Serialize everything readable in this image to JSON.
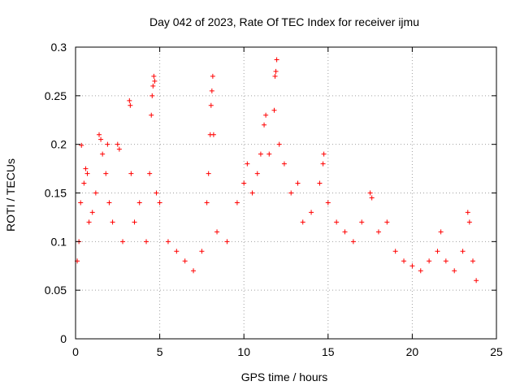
{
  "chart_data": {
    "type": "scatter",
    "title": "Day 042 of 2023, Rate Of TEC Index for receiver ijmu",
    "xlabel": "GPS time / hours",
    "ylabel": "ROTI / TECUs",
    "xlim": [
      0,
      25
    ],
    "ylim": [
      0,
      0.3
    ],
    "x_ticks": [
      "0",
      "5",
      "10",
      "15",
      "20",
      "25"
    ],
    "y_ticks": [
      "0",
      "0.05",
      "0.1",
      "0.15",
      "0.2",
      "0.25",
      "0.3"
    ],
    "grid": true,
    "marker": "plus",
    "series_color": "#ff0000",
    "points": [
      [
        0.1,
        0.08
      ],
      [
        0.2,
        0.1
      ],
      [
        0.3,
        0.14
      ],
      [
        0.35,
        0.199
      ],
      [
        0.5,
        0.16
      ],
      [
        0.6,
        0.175
      ],
      [
        0.7,
        0.17
      ],
      [
        0.8,
        0.12
      ],
      [
        1.0,
        0.13
      ],
      [
        1.2,
        0.15
      ],
      [
        1.4,
        0.21
      ],
      [
        1.5,
        0.205
      ],
      [
        1.6,
        0.19
      ],
      [
        1.8,
        0.17
      ],
      [
        1.9,
        0.2
      ],
      [
        2.0,
        0.14
      ],
      [
        2.2,
        0.12
      ],
      [
        2.5,
        0.2
      ],
      [
        2.6,
        0.195
      ],
      [
        2.8,
        0.1
      ],
      [
        3.2,
        0.245
      ],
      [
        3.25,
        0.24
      ],
      [
        3.3,
        0.17
      ],
      [
        3.5,
        0.12
      ],
      [
        3.8,
        0.14
      ],
      [
        4.2,
        0.1
      ],
      [
        4.4,
        0.17
      ],
      [
        4.5,
        0.23
      ],
      [
        4.55,
        0.25
      ],
      [
        4.6,
        0.26
      ],
      [
        4.65,
        0.27
      ],
      [
        4.7,
        0.265
      ],
      [
        4.8,
        0.15
      ],
      [
        5.0,
        0.14
      ],
      [
        5.5,
        0.1
      ],
      [
        6.0,
        0.09
      ],
      [
        6.5,
        0.08
      ],
      [
        7.0,
        0.07
      ],
      [
        7.5,
        0.09
      ],
      [
        7.8,
        0.14
      ],
      [
        7.9,
        0.17
      ],
      [
        8.0,
        0.21
      ],
      [
        8.05,
        0.24
      ],
      [
        8.1,
        0.255
      ],
      [
        8.15,
        0.27
      ],
      [
        8.2,
        0.21
      ],
      [
        8.4,
        0.11
      ],
      [
        9.0,
        0.1
      ],
      [
        9.6,
        0.14
      ],
      [
        10.0,
        0.16
      ],
      [
        10.2,
        0.18
      ],
      [
        10.5,
        0.15
      ],
      [
        10.8,
        0.17
      ],
      [
        11.0,
        0.19
      ],
      [
        11.2,
        0.22
      ],
      [
        11.3,
        0.23
      ],
      [
        11.5,
        0.19
      ],
      [
        11.8,
        0.235
      ],
      [
        11.85,
        0.27
      ],
      [
        11.9,
        0.275
      ],
      [
        11.95,
        0.287
      ],
      [
        12.1,
        0.2
      ],
      [
        12.4,
        0.18
      ],
      [
        12.8,
        0.15
      ],
      [
        13.2,
        0.16
      ],
      [
        13.5,
        0.12
      ],
      [
        14.0,
        0.13
      ],
      [
        14.5,
        0.16
      ],
      [
        14.7,
        0.18
      ],
      [
        14.75,
        0.19
      ],
      [
        15.0,
        0.14
      ],
      [
        15.5,
        0.12
      ],
      [
        16.0,
        0.11
      ],
      [
        16.5,
        0.1
      ],
      [
        17.0,
        0.12
      ],
      [
        17.5,
        0.15
      ],
      [
        17.6,
        0.145
      ],
      [
        18.0,
        0.11
      ],
      [
        18.5,
        0.12
      ],
      [
        19.0,
        0.09
      ],
      [
        19.5,
        0.08
      ],
      [
        20.0,
        0.075
      ],
      [
        20.5,
        0.07
      ],
      [
        21.0,
        0.08
      ],
      [
        21.5,
        0.09
      ],
      [
        21.7,
        0.11
      ],
      [
        22.0,
        0.08
      ],
      [
        22.5,
        0.07
      ],
      [
        23.0,
        0.09
      ],
      [
        23.3,
        0.13
      ],
      [
        23.4,
        0.12
      ],
      [
        23.6,
        0.08
      ],
      [
        23.8,
        0.06
      ]
    ]
  }
}
